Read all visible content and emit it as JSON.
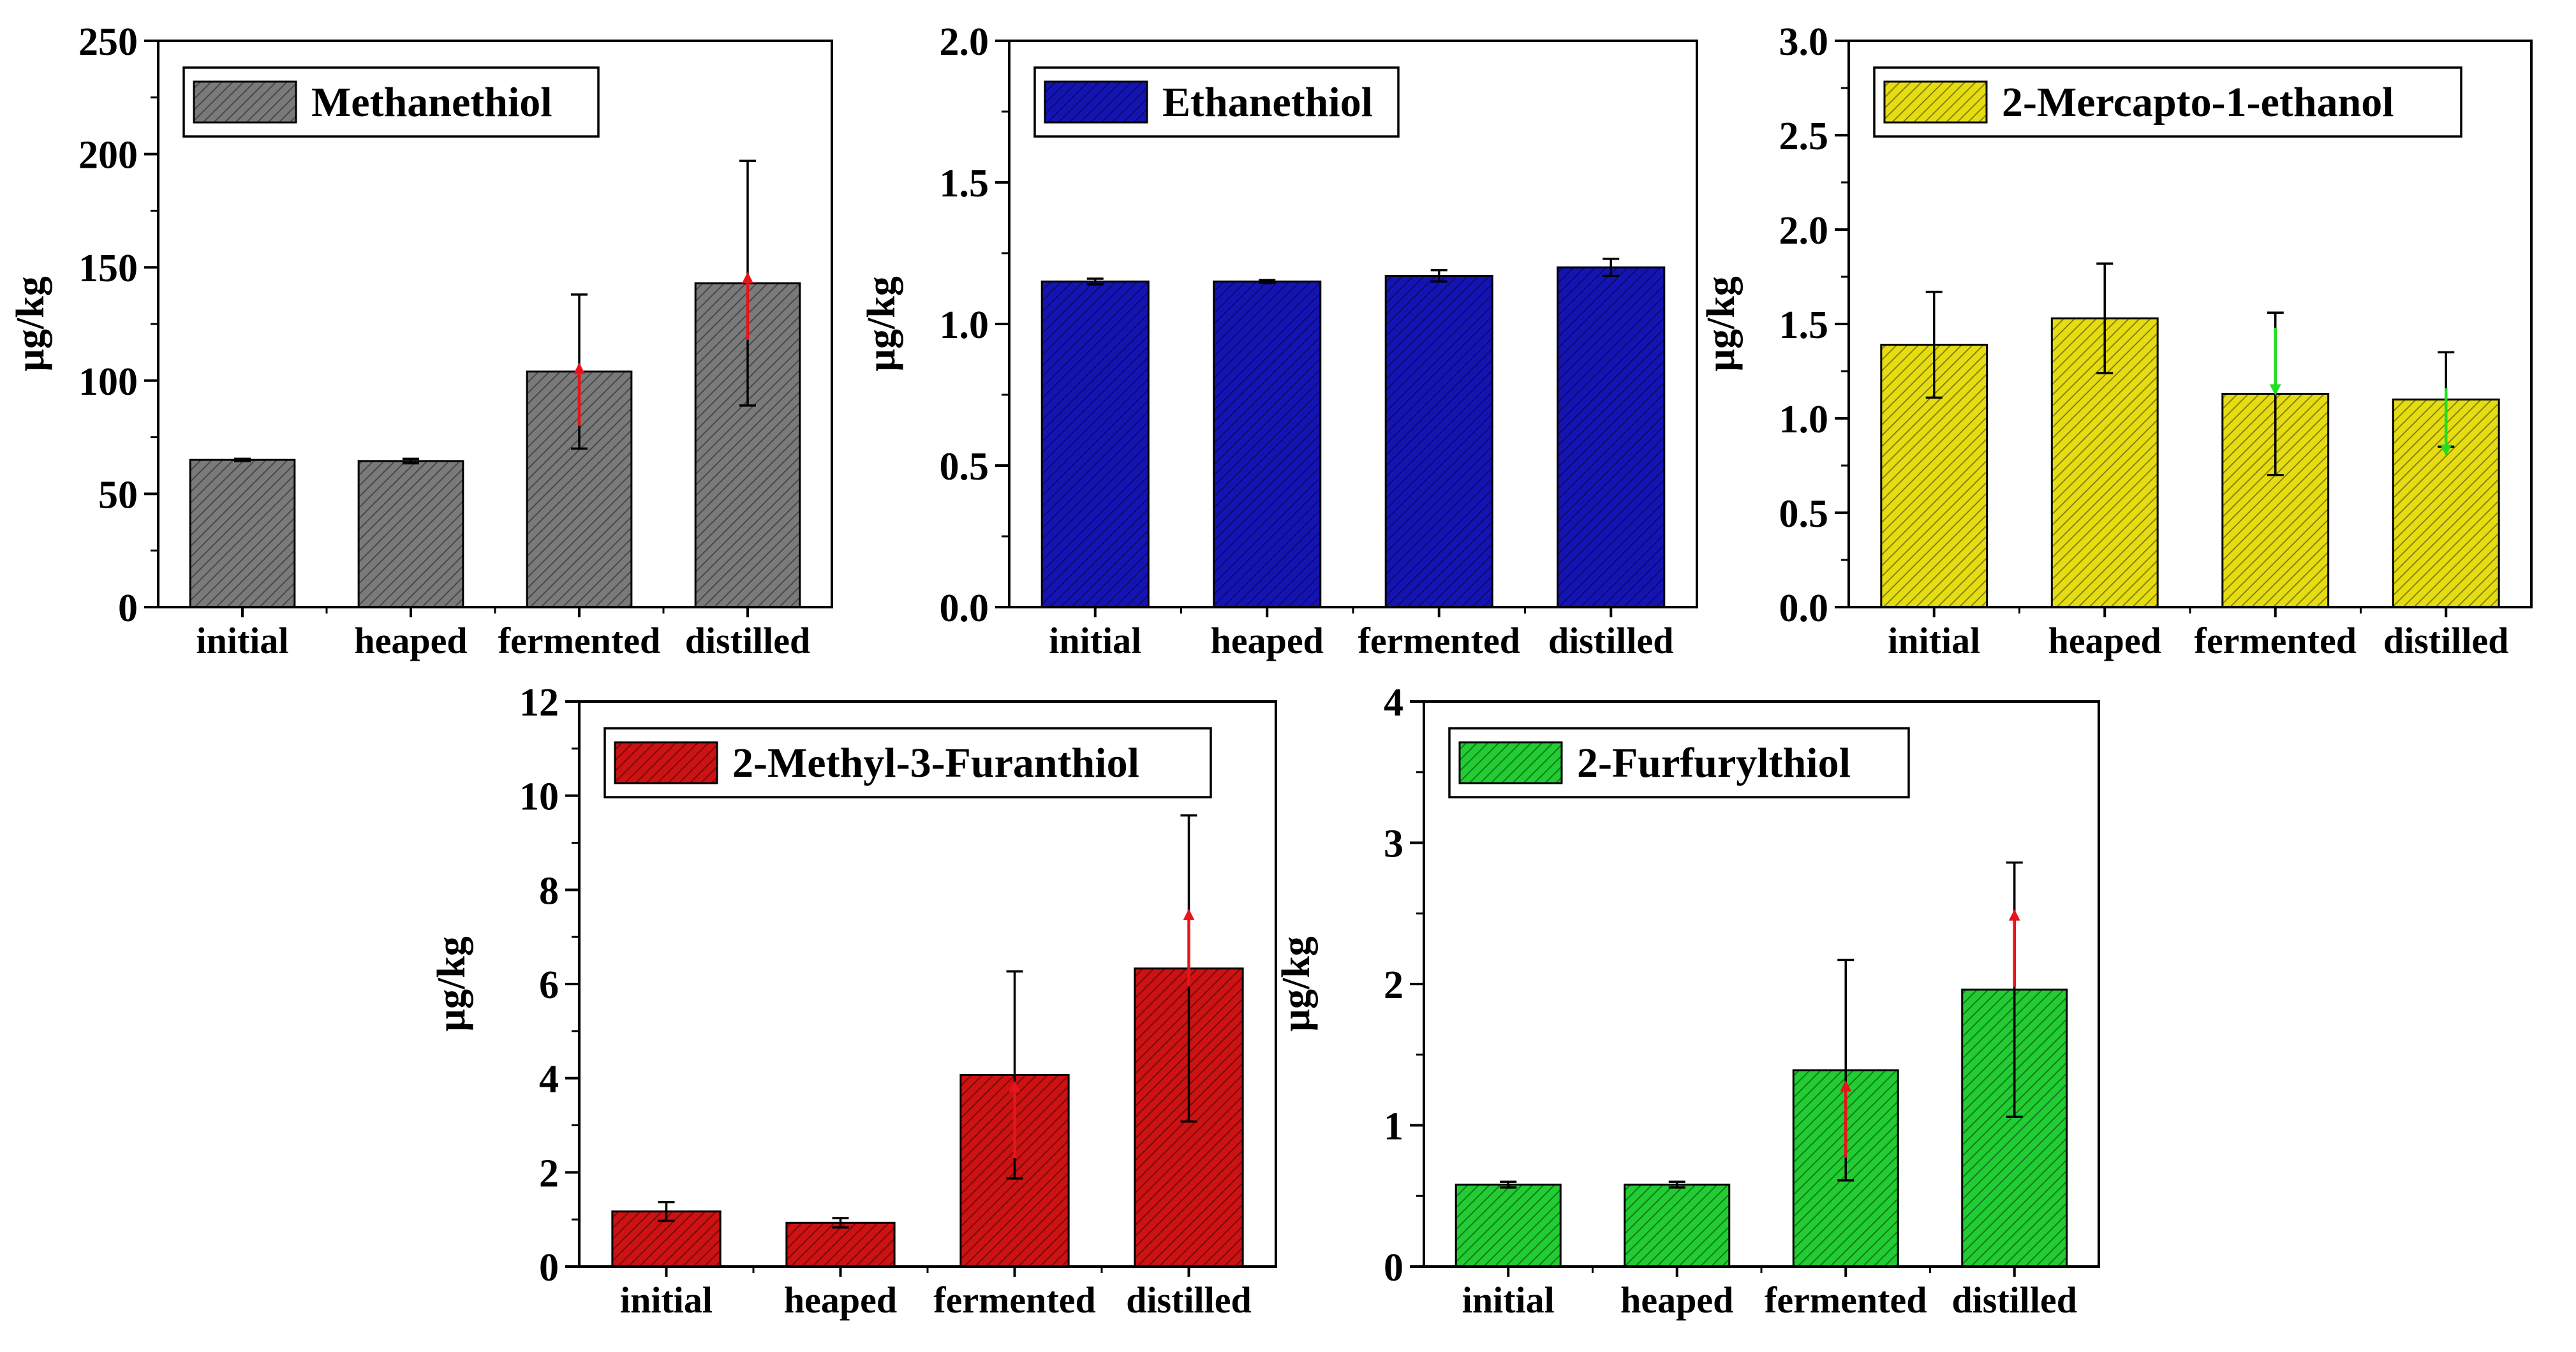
{
  "chart_data": [
    {
      "type": "bar",
      "title": "",
      "legend": "Methanethiol",
      "color": "#7a7a7a",
      "categories": [
        "initial",
        "heaped",
        "fermented",
        "distilled"
      ],
      "values": [
        65,
        64.5,
        104,
        143
      ],
      "errors": [
        0.5,
        1,
        34,
        54
      ],
      "ylabel": "µg/kg",
      "ylim": [
        0,
        250
      ],
      "yticks": [
        0,
        50,
        100,
        150,
        200,
        250
      ],
      "ytick_labels": [
        "0",
        "50",
        "100",
        "150",
        "200",
        "250"
      ],
      "arrows": [
        {
          "position": 2.5,
          "direction": "up",
          "y_from": 80,
          "y_to": 108,
          "color": "#e8141b"
        },
        {
          "position": 3.5,
          "direction": "up",
          "y_from": 118,
          "y_to": 148,
          "color": "#e8141b"
        }
      ]
    },
    {
      "type": "bar",
      "title": "",
      "legend": "Ethanethiol",
      "color": "#1414b4",
      "categories": [
        "initial",
        "heaped",
        "fermented",
        "distilled"
      ],
      "values": [
        1.15,
        1.15,
        1.17,
        1.2
      ],
      "errors": [
        0.01,
        0.005,
        0.02,
        0.03
      ],
      "ylabel": "µg/kg",
      "ylim": [
        0,
        2.0
      ],
      "yticks": [
        0,
        0.5,
        1.0,
        1.5,
        2.0
      ],
      "ytick_labels": [
        "0.0",
        "0.5",
        "1.0",
        "1.5",
        "2.0"
      ],
      "arrows": []
    },
    {
      "type": "bar",
      "title": "",
      "legend": "2-Mercapto-1-ethanol",
      "color": "#e5dc12",
      "categories": [
        "initial",
        "heaped",
        "fermented",
        "distilled"
      ],
      "values": [
        1.39,
        1.53,
        1.13,
        1.1
      ],
      "errors": [
        0.28,
        0.29,
        0.43,
        0.25
      ],
      "ylabel": "µg/kg",
      "ylim": [
        0,
        3.0
      ],
      "yticks": [
        0,
        0.5,
        1.0,
        1.5,
        2.0,
        2.5,
        3.0
      ],
      "ytick_labels": [
        "0.0",
        "0.5",
        "1.0",
        "1.5",
        "2.0",
        "2.5",
        "3.0"
      ],
      "arrows": [
        {
          "position": 2.5,
          "direction": "down",
          "y_from": 1.48,
          "y_to": 1.12,
          "color": "#22dd22"
        },
        {
          "position": 3.5,
          "direction": "down",
          "y_from": 1.16,
          "y_to": 0.8,
          "color": "#22dd22"
        }
      ]
    },
    {
      "type": "bar",
      "title": "",
      "legend": "2-Methyl-3-Furanthiol",
      "color": "#cc1212",
      "categories": [
        "initial",
        "heaped",
        "fermented",
        "distilled"
      ],
      "values": [
        1.17,
        0.93,
        4.07,
        6.33
      ],
      "errors": [
        0.2,
        0.1,
        2.2,
        3.25
      ],
      "ylabel": "µg/kg",
      "ylim": [
        0,
        12
      ],
      "yticks": [
        0,
        2,
        4,
        6,
        8,
        10,
        12
      ],
      "ytick_labels": [
        "0",
        "2",
        "4",
        "6",
        "8",
        "10",
        "12"
      ],
      "arrows": [
        {
          "position": 2.5,
          "direction": "up",
          "y_from": 2.3,
          "y_to": 3.95,
          "color": "#e8141b"
        },
        {
          "position": 3.5,
          "direction": "up",
          "y_from": 5.95,
          "y_to": 7.6,
          "color": "#e8141b"
        }
      ]
    },
    {
      "type": "bar",
      "title": "",
      "legend": "2-Furfurylthiol",
      "color": "#22cc33",
      "categories": [
        "initial",
        "heaped",
        "fermented",
        "distilled"
      ],
      "values": [
        0.58,
        0.58,
        1.39,
        1.96
      ],
      "errors": [
        0.02,
        0.02,
        0.78,
        0.9
      ],
      "ylabel": "µg/kg",
      "ylim": [
        0,
        4
      ],
      "yticks": [
        0,
        1,
        2,
        3,
        4
      ],
      "ytick_labels": [
        "0",
        "1",
        "2",
        "3",
        "4"
      ],
      "arrows": [
        {
          "position": 2.5,
          "direction": "up",
          "y_from": 0.77,
          "y_to": 1.32,
          "color": "#e8141b"
        },
        {
          "position": 3.5,
          "direction": "up",
          "y_from": 1.98,
          "y_to": 2.53,
          "color": "#e8141b"
        }
      ]
    }
  ]
}
